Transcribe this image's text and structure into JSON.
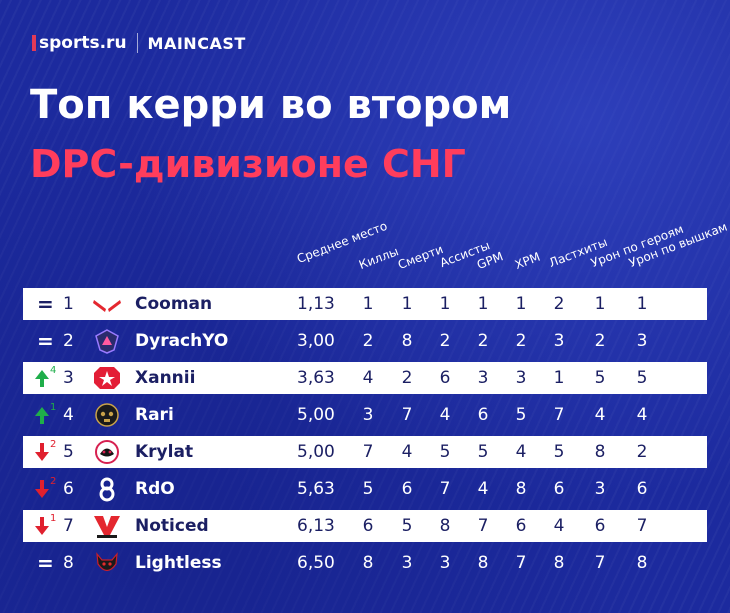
{
  "brand": {
    "sports": "sports.ru",
    "maincast": "MAINCAST"
  },
  "title_line1": "Топ керри во втором",
  "title_line2": "DPC-дивизионе СНГ",
  "columns": [
    "Среднее место",
    "Киллы",
    "Смерти",
    "Ассисты",
    "GPM",
    "XPM",
    "Ластхиты",
    "Урон по героям",
    "Урон по вышкам"
  ],
  "colors": {
    "background": "#1c2a9e",
    "accent": "#ff3d5c",
    "row_light": "#ffffff",
    "up": "#1fae4a",
    "down": "#e0202e"
  },
  "rows": [
    {
      "trend": "=",
      "change": "",
      "rank": "1",
      "team_icon": "virtus-pro-like-logo",
      "player": "Cooman",
      "avg": "1,13",
      "kills": "1",
      "deaths": "1",
      "assists": "1",
      "gpm": "1",
      "xpm": "1",
      "lasthits": "2",
      "hero_dmg": "1",
      "tower_dmg": "1"
    },
    {
      "trend": "=",
      "change": "",
      "rank": "2",
      "team_icon": "shield-logo",
      "player": "DyrachYO",
      "avg": "3,00",
      "kills": "2",
      "deaths": "8",
      "assists": "2",
      "gpm": "2",
      "xpm": "2",
      "lasthits": "3",
      "hero_dmg": "2",
      "tower_dmg": "3"
    },
    {
      "trend": "up",
      "change": "4",
      "rank": "3",
      "team_icon": "gambit-logo",
      "player": "Xannii",
      "avg": "3,63",
      "kills": "4",
      "deaths": "2",
      "assists": "6",
      "gpm": "3",
      "xpm": "3",
      "lasthits": "1",
      "hero_dmg": "5",
      "tower_dmg": "5"
    },
    {
      "trend": "up",
      "change": "1",
      "rank": "4",
      "team_icon": "skull-logo",
      "player": "Rari",
      "avg": "5,00",
      "kills": "3",
      "deaths": "7",
      "assists": "4",
      "gpm": "6",
      "xpm": "5",
      "lasthits": "7",
      "hero_dmg": "4",
      "tower_dmg": "4"
    },
    {
      "trend": "down",
      "change": "2",
      "rank": "5",
      "team_icon": "round-logo",
      "player": "Krylat",
      "avg": "5,00",
      "kills": "7",
      "deaths": "4",
      "assists": "5",
      "gpm": "5",
      "xpm": "4",
      "lasthits": "5",
      "hero_dmg": "8",
      "tower_dmg": "2"
    },
    {
      "trend": "down",
      "change": "2",
      "rank": "6",
      "team_icon": "eight-logo",
      "player": "RdO",
      "avg": "5,63",
      "kills": "5",
      "deaths": "6",
      "assists": "7",
      "gpm": "4",
      "xpm": "8",
      "lasthits": "6",
      "hero_dmg": "3",
      "tower_dmg": "6"
    },
    {
      "trend": "down",
      "change": "1",
      "rank": "7",
      "team_icon": "vp-prodigy-logo",
      "player": "Noticed",
      "avg": "6,13",
      "kills": "6",
      "deaths": "5",
      "assists": "8",
      "gpm": "7",
      "xpm": "6",
      "lasthits": "4",
      "hero_dmg": "6",
      "tower_dmg": "7"
    },
    {
      "trend": "=",
      "change": "",
      "rank": "8",
      "team_icon": "demon-logo",
      "player": "Lightless",
      "avg": "6,50",
      "kills": "8",
      "deaths": "3",
      "assists": "3",
      "gpm": "8",
      "xpm": "7",
      "lasthits": "8",
      "hero_dmg": "7",
      "tower_dmg": "8"
    }
  ]
}
